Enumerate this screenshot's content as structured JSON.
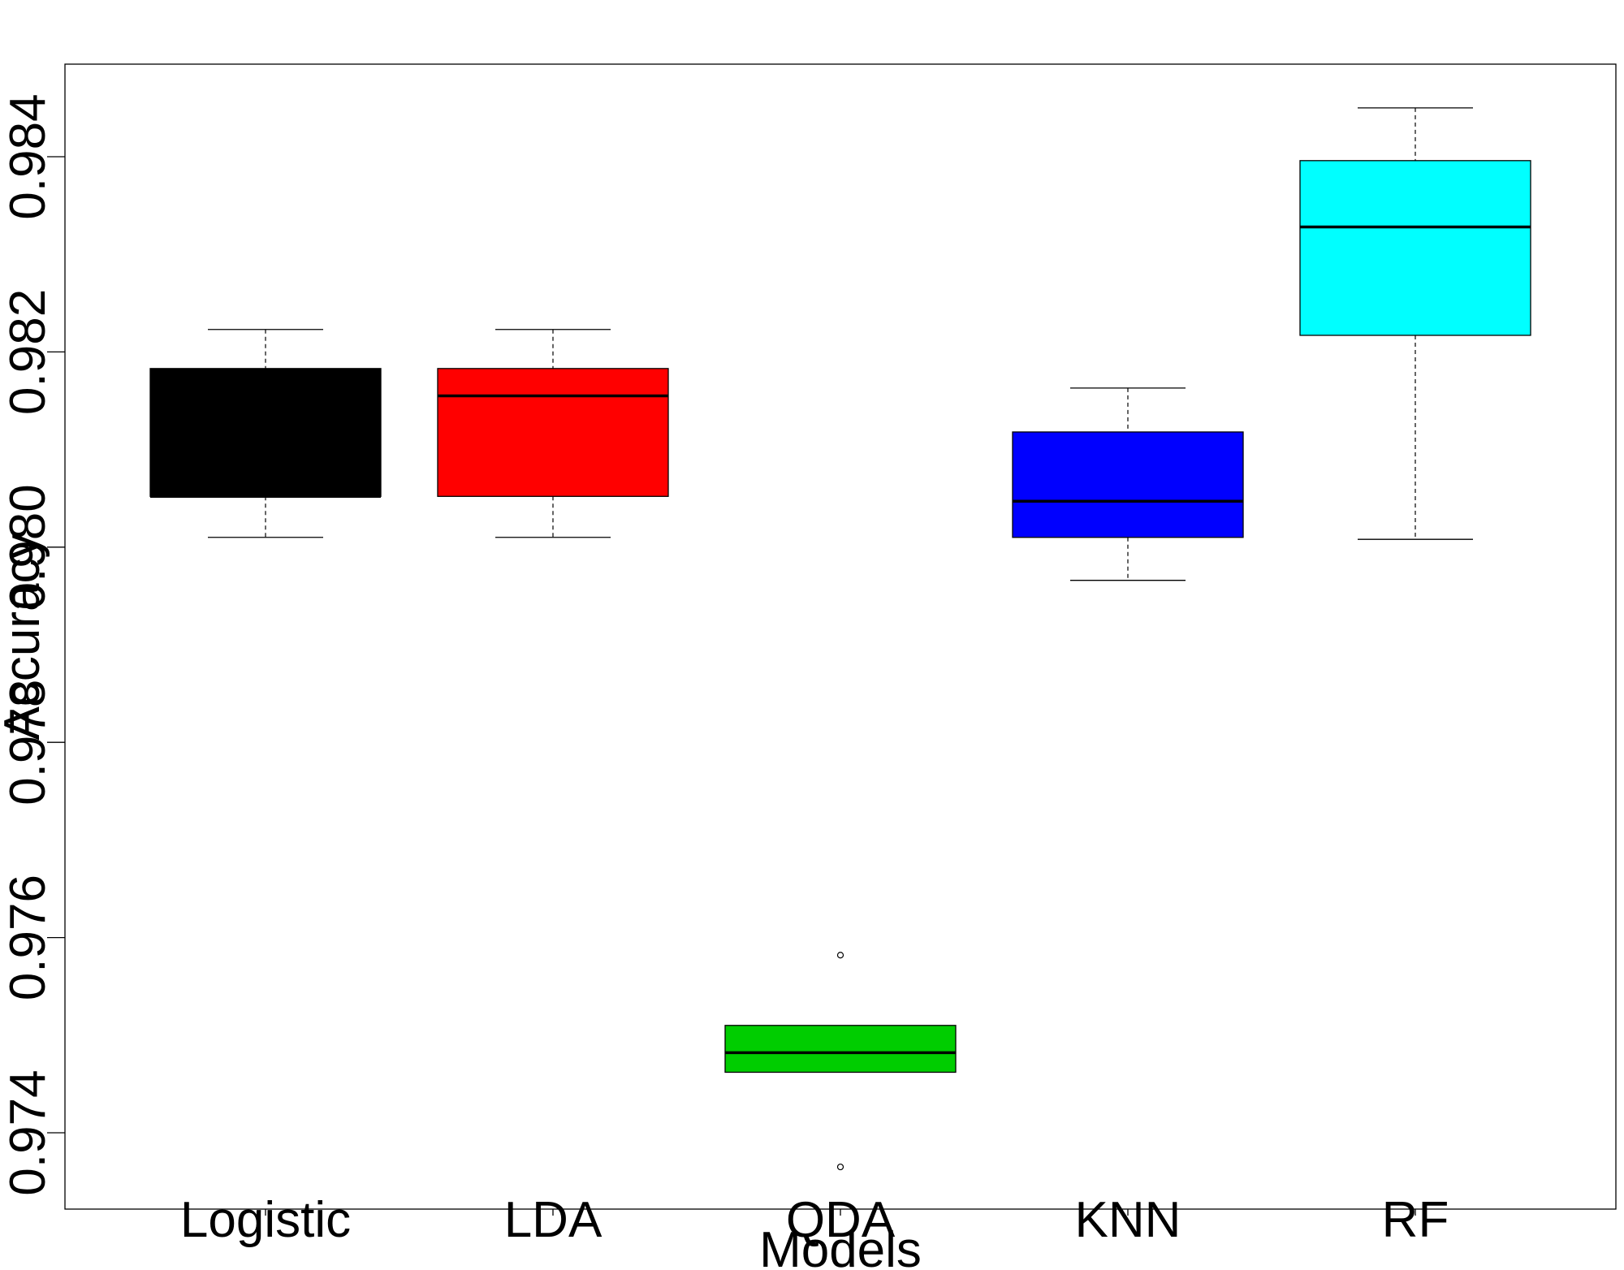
{
  "chart_data": {
    "type": "boxplot",
    "title": "",
    "xlabel": "Models",
    "ylabel": "Accuracy",
    "ylim": [
      0.9732,
      0.9849
    ],
    "yticks": [
      0.974,
      0.976,
      0.978,
      0.98,
      0.982,
      0.984
    ],
    "ytick_labels": [
      "0.974",
      "0.976",
      "0.978",
      "0.980",
      "0.982",
      "0.984"
    ],
    "grid": false,
    "legend": "none",
    "categories": [
      "Logistic",
      "LDA",
      "QDA",
      "KNN",
      "RF"
    ],
    "boxes": [
      {
        "category": "Logistic",
        "color": "#000000",
        "whisker_low": 0.9801,
        "q1": 0.98052,
        "median": 0.98052,
        "q3": 0.98183,
        "whisker_high": 0.98223,
        "outliers": []
      },
      {
        "category": "LDA",
        "color": "#ff0000",
        "whisker_low": 0.9801,
        "q1": 0.98052,
        "median": 0.98155,
        "q3": 0.98183,
        "whisker_high": 0.98223,
        "outliers": []
      },
      {
        "category": "QDA",
        "color": "#00cd00",
        "whisker_low": 0.97462,
        "q1": 0.97462,
        "median": 0.97482,
        "q3": 0.9751,
        "whisker_high": 0.9751,
        "outliers": [
          0.97582,
          0.97365
        ]
      },
      {
        "category": "KNN",
        "color": "#0000ff",
        "whisker_low": 0.97966,
        "q1": 0.9801,
        "median": 0.98047,
        "q3": 0.98118,
        "whisker_high": 0.98163,
        "outliers": []
      },
      {
        "category": "RF",
        "color": "#00ffff",
        "whisker_low": 0.98008,
        "q1": 0.98217,
        "median": 0.98328,
        "q3": 0.98396,
        "whisker_high": 0.9845,
        "outliers": []
      }
    ]
  }
}
